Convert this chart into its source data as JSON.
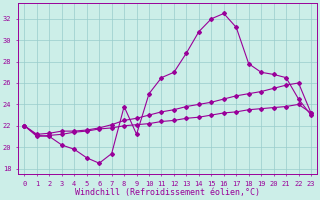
{
  "background_color": "#cceee8",
  "line_color": "#990099",
  "grid_color": "#99cccc",
  "xlabel": "Windchill (Refroidissement éolien,°C)",
  "xlabel_color": "#990099",
  "ylim": [
    17.5,
    33.5
  ],
  "xlim": [
    -0.5,
    23.5
  ],
  "yticks": [
    18,
    20,
    22,
    24,
    26,
    28,
    30,
    32
  ],
  "xticks": [
    0,
    1,
    2,
    3,
    4,
    5,
    6,
    7,
    8,
    9,
    10,
    11,
    12,
    13,
    14,
    15,
    16,
    17,
    18,
    19,
    20,
    21,
    22,
    23
  ],
  "line1_x": [
    0,
    1,
    2,
    3,
    4,
    5,
    6,
    7,
    8,
    9,
    10,
    11,
    12,
    13,
    14,
    15,
    16,
    17,
    18,
    19,
    20,
    21,
    22,
    23
  ],
  "line1_y": [
    22.0,
    21.1,
    21.0,
    20.2,
    19.8,
    19.0,
    18.5,
    19.4,
    23.8,
    21.2,
    25.0,
    26.5,
    27.0,
    28.8,
    30.8,
    32.0,
    32.5,
    31.2,
    27.8,
    27.0,
    26.8,
    26.5,
    24.5,
    23.0
  ],
  "line2_x": [
    0,
    1,
    2,
    3,
    4,
    5,
    6,
    7,
    8,
    9,
    10,
    11,
    12,
    13,
    14,
    15,
    16,
    17,
    18,
    19,
    20,
    21,
    22,
    23
  ],
  "line2_y": [
    22.0,
    21.2,
    21.3,
    21.5,
    21.5,
    21.6,
    21.8,
    22.1,
    22.5,
    22.7,
    23.0,
    23.3,
    23.5,
    23.8,
    24.0,
    24.2,
    24.5,
    24.8,
    25.0,
    25.2,
    25.5,
    25.8,
    26.0,
    23.2
  ],
  "line3_x": [
    0,
    1,
    2,
    3,
    4,
    5,
    6,
    7,
    8,
    9,
    10,
    11,
    12,
    13,
    14,
    15,
    16,
    17,
    18,
    19,
    20,
    21,
    22,
    23
  ],
  "line3_y": [
    22.0,
    21.0,
    21.1,
    21.2,
    21.4,
    21.5,
    21.7,
    21.8,
    22.0,
    22.1,
    22.2,
    22.4,
    22.5,
    22.7,
    22.8,
    23.0,
    23.2,
    23.3,
    23.5,
    23.6,
    23.7,
    23.8,
    24.0,
    23.2
  ],
  "marker": "D",
  "markersize": 2.0,
  "linewidth": 0.8,
  "tick_fontsize": 5.0,
  "xlabel_fontsize": 6.0
}
